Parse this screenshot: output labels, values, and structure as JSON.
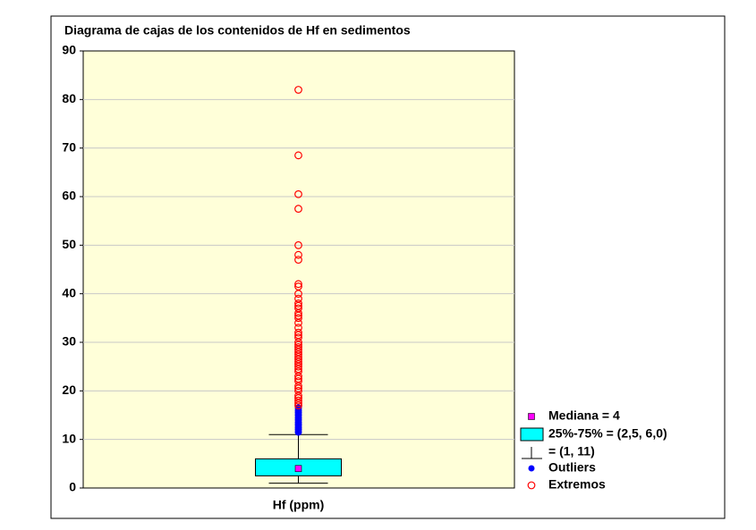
{
  "chart_data": {
    "type": "box",
    "title": "Diagrama de cajas de los contenidos de Hf en sedimentos",
    "categories": [
      "Hf (ppm)"
    ],
    "median": 4,
    "q1": 2.5,
    "q3": 6.0,
    "whisker_low": 1,
    "whisker_high": 11,
    "outliers": [
      11.5,
      12,
      12.5,
      13,
      13.5,
      14,
      14.5,
      15,
      15.5,
      16,
      16.5
    ],
    "extremes": [
      17,
      17.5,
      18,
      18.5,
      19,
      20,
      20.5,
      21,
      22,
      22.5,
      23,
      24,
      24.5,
      25,
      25.5,
      26,
      26.5,
      27,
      27.5,
      28,
      28.5,
      29,
      29.5,
      30,
      31,
      31.5,
      32,
      33,
      34,
      35,
      35.5,
      36,
      37,
      37.5,
      38,
      39,
      40,
      41.5,
      42,
      47,
      48,
      50,
      57.5,
      60.5,
      68.5,
      82
    ],
    "ylim": [
      0,
      90
    ],
    "yticks": [
      0,
      10,
      20,
      30,
      40,
      50,
      60,
      70,
      80,
      90
    ],
    "grid": true,
    "box_color": "#00ffff",
    "median_color": "#ff00ff",
    "outlier_color": "#0000ff",
    "extreme_color": "#ff0000",
    "plot_background": "#ffffd9",
    "legend": [
      "Mediana = 4",
      "25%-75% = (2,5, 6,0)",
      "= (1, 11)",
      "Outliers",
      "Extremos"
    ]
  }
}
